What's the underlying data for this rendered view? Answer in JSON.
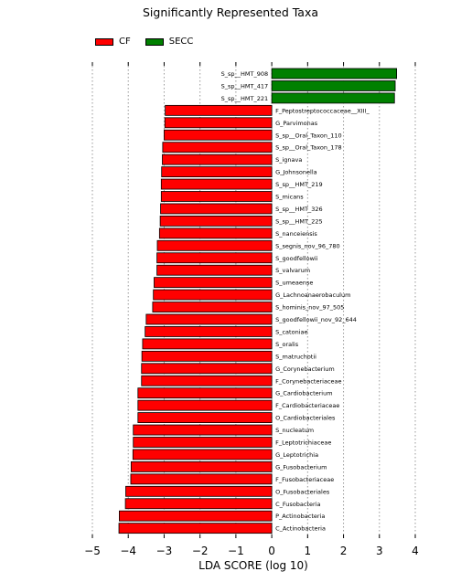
{
  "chart_data": {
    "type": "bar",
    "orientation": "horizontal",
    "title": "Significantly Represented Taxa",
    "xlabel": "LDA SCORE (log 10)",
    "ylabel": "",
    "xlim": [
      -5,
      4
    ],
    "xticks": [
      "−5",
      "−4",
      "−3",
      "−2",
      "−1",
      "0",
      "1",
      "2",
      "3",
      "4"
    ],
    "grid": "vertical dotted",
    "legend_placement": "top-left",
    "series": [
      {
        "name": "CF",
        "color": "#ff0000"
      },
      {
        "name": "SECC",
        "color": "#008000"
      }
    ],
    "categories": [
      "S_sp__HMT_908",
      "S_sp__HMT_417",
      "S_sp__HMT_221",
      "F_Peptostreptococcaceae__XIII_",
      "G_Parvimonas",
      "S_sp__Oral_Taxon_110",
      "S_sp__Oral_Taxon_178",
      "S_ignava",
      "G_Johnsonella",
      "S_sp__HMT_219",
      "S_micans",
      "S_sp__HMT_326",
      "S_sp__HMT_225",
      "S_nanceiensis",
      "S_segnis_nov_96_780",
      "S_goodfellowii",
      "S_valvarum",
      "S_umeaense",
      "G_Lachnoanaerobaculum",
      "S_hominis_nov_97_505",
      "S_goodfellowii_nov_92_644",
      "S_catoniae",
      "S_oralis",
      "S_matruchotii",
      "G_Corynebacterium",
      "F_Corynebacteriaceae",
      "G_Cardiobacterium",
      "F_Cardiobacteriaceae",
      "O_Cardiobacteriales",
      "S_nucleatum",
      "F_Leptotrichiaceae",
      "G_Leptotrichia",
      "G_Fusobacterium",
      "F_Fusobacteriaceae",
      "O_Fusobacteriales",
      "C_Fusobacteria",
      "P_Actinobacteria",
      "C_Actinobacteria"
    ],
    "values": [
      3.48,
      3.44,
      3.42,
      -2.97,
      -2.98,
      -3.0,
      -3.04,
      -3.05,
      -3.07,
      -3.08,
      -3.08,
      -3.1,
      -3.11,
      -3.13,
      -3.19,
      -3.2,
      -3.2,
      -3.28,
      -3.3,
      -3.32,
      -3.5,
      -3.53,
      -3.6,
      -3.62,
      -3.63,
      -3.63,
      -3.73,
      -3.73,
      -3.73,
      -3.86,
      -3.86,
      -3.87,
      -3.92,
      -3.93,
      -4.07,
      -4.08,
      -4.25,
      -4.26
    ],
    "group": [
      "SECC",
      "SECC",
      "SECC",
      "CF",
      "CF",
      "CF",
      "CF",
      "CF",
      "CF",
      "CF",
      "CF",
      "CF",
      "CF",
      "CF",
      "CF",
      "CF",
      "CF",
      "CF",
      "CF",
      "CF",
      "CF",
      "CF",
      "CF",
      "CF",
      "CF",
      "CF",
      "CF",
      "CF",
      "CF",
      "CF",
      "CF",
      "CF",
      "CF",
      "CF",
      "CF",
      "CF",
      "CF",
      "CF"
    ]
  }
}
